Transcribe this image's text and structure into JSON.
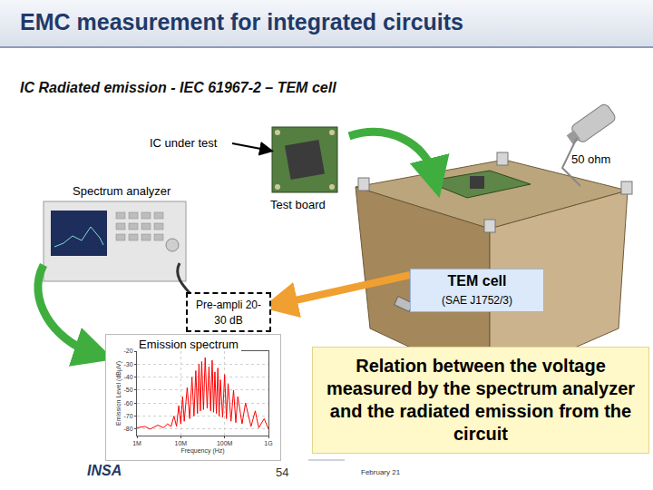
{
  "header": {
    "title": "EMC measurement for integrated circuits",
    "subtitle": "IC Radiated emission - IEC 61967-2 – TEM cell"
  },
  "labels": {
    "ic_under_test": "IC under test",
    "load": "50 ohm",
    "analyzer": "Spectrum analyzer",
    "test_board": "Test board",
    "tem_cell": "TEM cell",
    "tem_standard": "(SAE J1752/3)",
    "preamp": [
      "Pre-ampli 20-",
      "30 dB"
    ],
    "spectrum": "Emission spectrum"
  },
  "callout": "Relation between the voltage measured by the spectrum analyzer and the radiated emission from the circuit",
  "footer": {
    "logo": "INSA",
    "page": 54,
    "date": "February 21"
  },
  "chart_data": {
    "type": "line",
    "x_label": "Frequency (Hz)",
    "y_label": "Emission Level (dBµV)",
    "x": [
      1000000,
      1500000,
      2000000,
      3000000,
      4000000,
      5000000,
      6000000,
      7000000,
      8000000,
      9000000,
      10000000,
      11000000,
      12000000,
      14000000,
      16000000,
      18000000,
      20000000,
      22000000,
      24000000,
      26000000,
      28000000,
      30000000,
      33000000,
      36000000,
      40000000,
      44000000,
      48000000,
      52000000,
      56000000,
      60000000,
      65000000,
      70000000,
      75000000,
      80000000,
      90000000,
      100000000,
      110000000,
      120000000,
      140000000,
      160000000,
      180000000,
      200000000,
      250000000,
      300000000,
      400000000,
      500000000,
      600000000,
      800000000,
      1000000000
    ],
    "values": [
      -79,
      -78,
      -80,
      -77,
      -79,
      -76,
      -78,
      -70,
      -78,
      -62,
      -76,
      -55,
      -74,
      -48,
      -72,
      -40,
      -70,
      -35,
      -68,
      -30,
      -66,
      -28,
      -65,
      -25,
      -64,
      -32,
      -66,
      -27,
      -67,
      -36,
      -68,
      -33,
      -70,
      -42,
      -71,
      -38,
      -72,
      -45,
      -74,
      -50,
      -75,
      -55,
      -76,
      -60,
      -78,
      -66,
      -79,
      -72,
      -80
    ],
    "color": "#ff0000",
    "log": "x",
    "grid": true,
    "xlim": [
      1000000,
      1000000000
    ],
    "xticks": [
      {
        "value": 1000000,
        "label": "1M"
      },
      {
        "value": 10000000,
        "label": "10M"
      },
      {
        "value": 100000000,
        "label": "100M"
      },
      {
        "value": 1000000000,
        "label": "1G"
      }
    ],
    "ylim": [
      -85,
      -20
    ],
    "yticks": [
      -80,
      -70,
      -60,
      -50,
      -40,
      -30,
      -20
    ]
  }
}
